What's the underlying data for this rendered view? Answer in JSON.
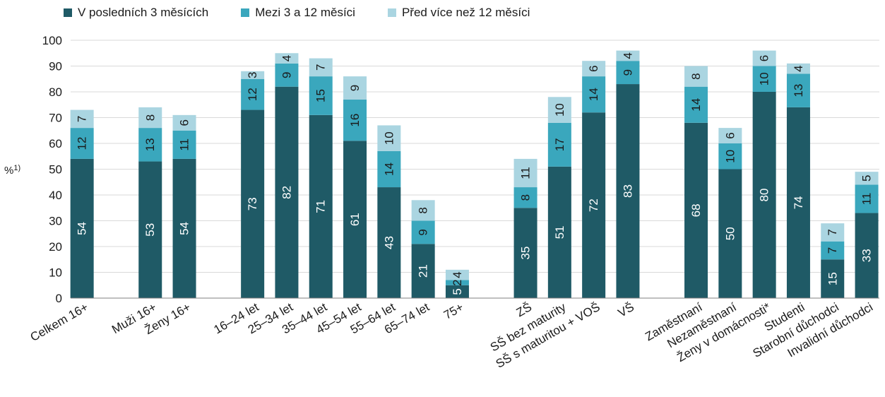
{
  "colors": {
    "recent": "#1f5a66",
    "mid": "#3aa7bd",
    "old": "#aad5e1",
    "axis": "#7f7f7f"
  },
  "legend": {
    "items": [
      {
        "label": "V posledních 3 měsících",
        "color": "#1f5a66"
      },
      {
        "label": "Mezi 3 a 12 měsíci",
        "color": "#3aa7bd"
      },
      {
        "label": "Před více než 12 měsíci",
        "color": "#aad5e1"
      }
    ]
  },
  "chart_data": {
    "type": "bar",
    "stacked": true,
    "ylabel": "%1)",
    "ylim": [
      0,
      100
    ],
    "yticks": [
      0,
      10,
      20,
      30,
      40,
      50,
      60,
      70,
      80,
      90,
      100
    ],
    "categories": [
      "Celkem 16+",
      "",
      "Muži 16+",
      "Ženy 16+",
      "",
      "16–24 let",
      "25–34 let",
      "35–44 let",
      "45–54 let",
      "55–64 let",
      "65–74 let",
      "75+",
      "",
      "ZŠ",
      "SŠ bez maturity",
      "SŠ s maturitou + VOŠ",
      "VŠ",
      "",
      "Zaměstnaní",
      "Nezaměstnaní",
      "Ženy v domácnosti*",
      "Studenti",
      "Starobní důchodci",
      "Invalidní důchodci"
    ],
    "series": [
      {
        "name": "V posledních 3 měsících",
        "values": [
          54,
          null,
          53,
          54,
          null,
          73,
          82,
          71,
          61,
          43,
          21,
          5,
          null,
          35,
          51,
          72,
          83,
          null,
          68,
          50,
          80,
          74,
          15,
          33
        ]
      },
      {
        "name": "Mezi 3 a 12 měsíci",
        "values": [
          12,
          null,
          13,
          11,
          null,
          12,
          9,
          15,
          16,
          14,
          9,
          2,
          null,
          8,
          17,
          14,
          9,
          null,
          14,
          10,
          10,
          13,
          7,
          11
        ]
      },
      {
        "name": "Před více než 12 měsíci",
        "values": [
          7,
          null,
          8,
          6,
          null,
          3,
          4,
          7,
          9,
          10,
          8,
          4,
          null,
          11,
          10,
          6,
          4,
          null,
          8,
          6,
          6,
          4,
          7,
          5
        ]
      }
    ],
    "grid": "horizontal"
  }
}
